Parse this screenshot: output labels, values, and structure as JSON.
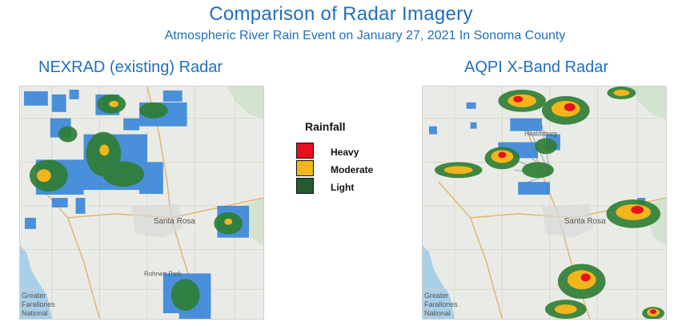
{
  "header": {
    "title": "Comparison of Radar Imagery",
    "subtitle": "Atmospheric River Rain Event on January 27, 2021 In Sonoma County"
  },
  "panels": [
    {
      "label": "NEXRAD (existing) Radar"
    },
    {
      "label": "AQPI X-Band Radar"
    }
  ],
  "map_labels": {
    "city": "Santa Rosa",
    "city2": "Rohnert Park",
    "city3": "Healdsburg",
    "sea_line1": "Greater",
    "sea_line2": "Farallones",
    "sea_line3": "National"
  },
  "legend": {
    "title": "Rainfall",
    "items": [
      {
        "label": "Heavy",
        "color": "#e8101a"
      },
      {
        "label": "Moderate",
        "color": "#f2b51c"
      },
      {
        "label": "Light",
        "color": "#245a2e"
      }
    ]
  },
  "colors": {
    "title": "#1f6fbf",
    "light_blue_rain": "#2f7fd8",
    "light_green_rain": "#2e7d32",
    "water": "#a9cfe8",
    "land": "#e9ece6"
  }
}
